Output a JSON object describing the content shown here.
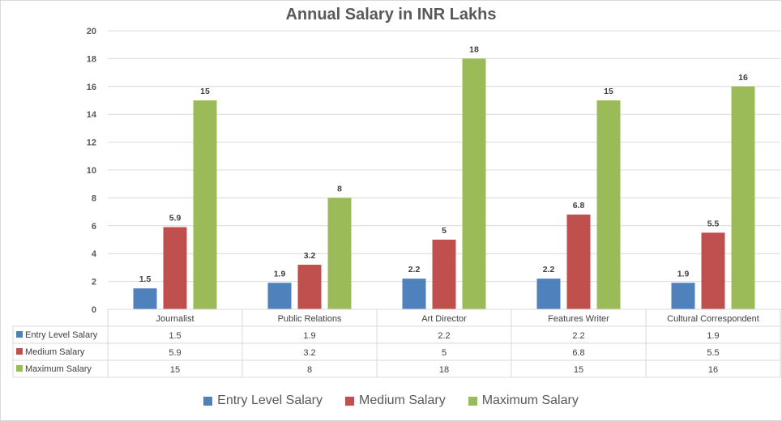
{
  "chart_data": {
    "type": "bar",
    "title": "Annual Salary in INR Lakhs",
    "categories": [
      "Journalist",
      "Public Relations",
      "Art Director",
      "Features Writer",
      "Cultural Correspondent"
    ],
    "series": [
      {
        "name": "Entry Level Salary",
        "color": "#4f81bd",
        "values": [
          1.5,
          1.9,
          2.2,
          2.2,
          1.9
        ]
      },
      {
        "name": "Medium Salary",
        "color": "#c0504d",
        "values": [
          5.9,
          3.2,
          5,
          6.8,
          5.5
        ]
      },
      {
        "name": "Maximum Salary",
        "color": "#9bbb59",
        "values": [
          15,
          8,
          18,
          15,
          16
        ]
      }
    ],
    "ylim": [
      0,
      20
    ],
    "yticks": [
      0,
      2,
      4,
      6,
      8,
      10,
      12,
      14,
      16,
      18,
      20
    ],
    "xlabel": "",
    "ylabel": "",
    "grid": true,
    "data_table": true,
    "legend_position": "bottom"
  }
}
